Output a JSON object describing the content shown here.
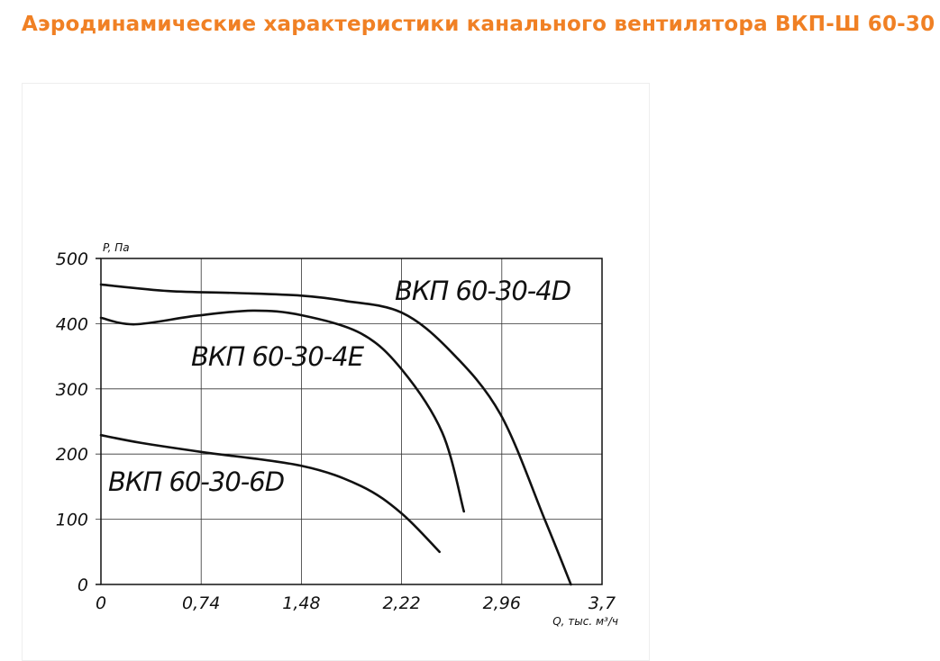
{
  "page": {
    "title": "Аэродинамические характеристики канального вентилятора ВКП-Ш 60-30",
    "accent_color": "#f08024"
  },
  "chart_data": {
    "type": "line",
    "title": "",
    "xlabel": "Q, тыс. м³/ч",
    "ylabel": "P, Па",
    "xlim": [
      0,
      3.7
    ],
    "ylim": [
      0,
      500
    ],
    "x_ticks": [
      "0",
      "0,74",
      "1,48",
      "2,22",
      "2,96",
      "3,7"
    ],
    "y_ticks": [
      "0",
      "100",
      "200",
      "300",
      "400",
      "500"
    ],
    "grid": true,
    "series": [
      {
        "name": "ВКП 60-30-4D",
        "x": [
          0,
          0.5,
          1.0,
          1.48,
          1.8,
          2.22,
          2.58,
          2.95,
          3.28,
          3.47
        ],
        "y": [
          460,
          450,
          447,
          443,
          435,
          417,
          358,
          261,
          98,
          0
        ]
      },
      {
        "name": "ВКП 60-30-4E",
        "x": [
          0,
          0.25,
          0.7,
          1.12,
          1.48,
          1.92,
          2.22,
          2.52,
          2.68
        ],
        "y": [
          409,
          399,
          412,
          420,
          413,
          385,
          330,
          233,
          112
        ]
      },
      {
        "name": "ВКП 60-30-6D",
        "x": [
          0,
          0.3,
          0.75,
          1.48,
          1.92,
          2.22,
          2.5
        ],
        "y": [
          229,
          217,
          203,
          182,
          151,
          109,
          50
        ]
      }
    ]
  }
}
